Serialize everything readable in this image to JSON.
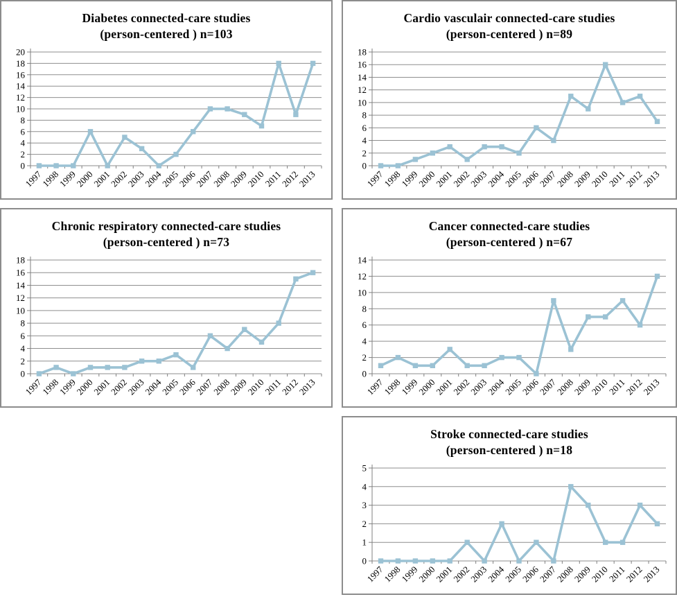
{
  "charts_shared": {
    "categories": [
      "1997",
      "1998",
      "1999",
      "2000",
      "2001",
      "2002",
      "2003",
      "2004",
      "2005",
      "2006",
      "2007",
      "2008",
      "2009",
      "2010",
      "2011",
      "2012",
      "2013"
    ],
    "colors": {
      "line": "#9BC2D4",
      "marker": "#9BC2D4",
      "grid": "#8E8E8E",
      "axis": "#7F7F7F",
      "border": "#8C8C8C",
      "text": "#000000"
    }
  },
  "chart_data": [
    {
      "type": "line",
      "title": "Diabetes connected-care studies",
      "subtitle": "(person-centered ) n=103",
      "n": 103,
      "categories": [
        "1997",
        "1998",
        "1999",
        "2000",
        "2001",
        "2002",
        "2003",
        "2004",
        "2005",
        "2006",
        "2007",
        "2008",
        "2009",
        "2010",
        "2011",
        "2012",
        "2013"
      ],
      "values": [
        0,
        0,
        0,
        6,
        0,
        5,
        3,
        0,
        2,
        6,
        10,
        10,
        9,
        7,
        18,
        9,
        18
      ],
      "ylim": [
        0,
        20
      ],
      "ytick_step": 2,
      "marker": "square",
      "grid": true,
      "legend": "none"
    },
    {
      "type": "line",
      "title": "Cardio vasculair connected-care studies",
      "subtitle": "(person-centered ) n=89",
      "n": 89,
      "categories": [
        "1997",
        "1998",
        "1999",
        "2000",
        "2001",
        "2002",
        "2003",
        "2004",
        "2005",
        "2006",
        "2007",
        "2008",
        "2009",
        "2010",
        "2011",
        "2012",
        "2013"
      ],
      "values": [
        0,
        0,
        1,
        2,
        3,
        1,
        3,
        3,
        2,
        6,
        4,
        11,
        9,
        16,
        10,
        11,
        7
      ],
      "ylim": [
        0,
        18
      ],
      "ytick_step": 2,
      "marker": "square",
      "grid": true,
      "legend": "none"
    },
    {
      "type": "line",
      "title": "Chronic respiratory connected-care studies",
      "subtitle": "(person-centered ) n=73",
      "n": 73,
      "categories": [
        "1997",
        "1998",
        "1999",
        "2000",
        "2001",
        "2002",
        "2003",
        "2004",
        "2005",
        "2006",
        "2007",
        "2008",
        "2009",
        "2010",
        "2011",
        "2012",
        "2013"
      ],
      "values": [
        0,
        1,
        0,
        1,
        1,
        1,
        2,
        2,
        3,
        1,
        6,
        4,
        7,
        5,
        8,
        15,
        16
      ],
      "ylim": [
        0,
        18
      ],
      "ytick_step": 2,
      "marker": "square",
      "grid": true,
      "legend": "none"
    },
    {
      "type": "line",
      "title": "Cancer connected-care studies",
      "subtitle": "(person-centered ) n=67",
      "n": 67,
      "categories": [
        "1997",
        "1998",
        "1999",
        "2000",
        "2001",
        "2002",
        "2003",
        "2004",
        "2005",
        "2006",
        "2007",
        "2008",
        "2009",
        "2010",
        "2011",
        "2012",
        "2013"
      ],
      "values": [
        1,
        2,
        1,
        1,
        3,
        1,
        1,
        2,
        2,
        0,
        9,
        3,
        7,
        7,
        9,
        6,
        12
      ],
      "ylim": [
        0,
        14
      ],
      "ytick_step": 2,
      "marker": "square",
      "grid": true,
      "legend": "none"
    },
    {
      "type": "line",
      "title": "Stroke connected-care studies",
      "subtitle": "(person-centered ) n=18",
      "n": 18,
      "categories": [
        "1997",
        "1998",
        "1999",
        "2000",
        "2001",
        "2002",
        "2003",
        "2004",
        "2005",
        "2006",
        "2007",
        "2008",
        "2009",
        "2010",
        "2011",
        "2012",
        "2013"
      ],
      "values": [
        0,
        0,
        0,
        0,
        0,
        1,
        0,
        2,
        0,
        1,
        0,
        4,
        3,
        1,
        1,
        3,
        2
      ],
      "ylim": [
        0,
        5
      ],
      "ytick_step": 1,
      "marker": "square",
      "grid": true,
      "legend": "none"
    }
  ]
}
